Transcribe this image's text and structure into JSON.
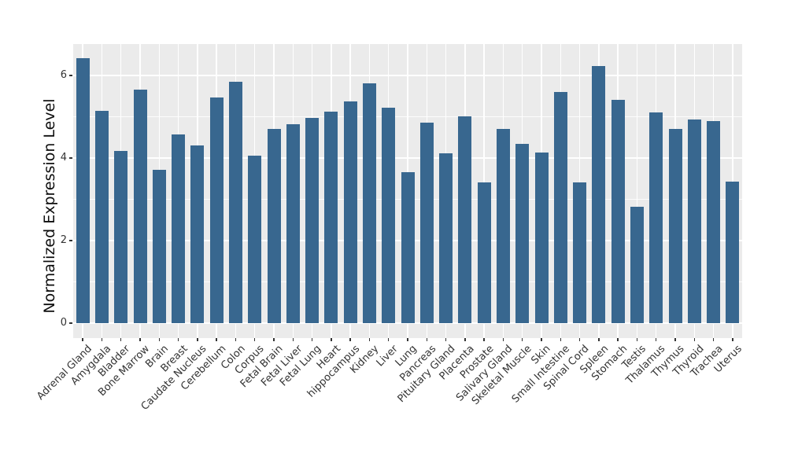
{
  "chart_data": {
    "type": "bar",
    "title": "",
    "xlabel": "",
    "ylabel": "Normalized Expression Level",
    "categories": [
      "Adrenal Gland",
      "Amygdala",
      "Bladder",
      "Bone Marrow",
      "Brain",
      "Breast",
      "Caudate Nucleus",
      "Cerebellum",
      "Colon",
      "Corpus",
      "Fetal Brain",
      "Fetal Liver",
      "Fetal Lung",
      "Heart",
      "hippocampus",
      "Kidney",
      "Liver",
      "Lung",
      "Pancreas",
      "Pituitary Gland",
      "Placenta",
      "Prostate",
      "Salivary Gland",
      "Skeletal Muscle",
      "Skin",
      "Small Intestine",
      "Spinal Cord",
      "Spleen",
      "Stomach",
      "Testis",
      "Thalamus",
      "Thymus",
      "Thyroid",
      "Trachea",
      "Uterus"
    ],
    "values": [
      6.42,
      5.15,
      4.18,
      5.66,
      3.71,
      4.58,
      4.31,
      5.47,
      5.85,
      4.05,
      4.7,
      4.82,
      4.97,
      5.12,
      5.37,
      5.8,
      5.22,
      3.66,
      4.86,
      4.11,
      5.0,
      3.41,
      4.7,
      4.35,
      4.14,
      5.6,
      3.4,
      6.23,
      5.4,
      2.82,
      5.1,
      4.7,
      4.93,
      4.9,
      3.43
    ],
    "ylim": [
      -0.36,
      6.76
    ],
    "yticks": [
      0,
      2,
      4,
      6
    ],
    "ytick_labels": [
      "0",
      "2",
      "4",
      "6"
    ],
    "yticks_minor": [
      1,
      3,
      5
    ],
    "grid": "on",
    "legend": "none",
    "bar_color": "#38678f",
    "panel_bg": "#ebebeb",
    "grid_color": "#ffffff",
    "tick_color": "#333333",
    "axis_text_color": "#333333"
  }
}
